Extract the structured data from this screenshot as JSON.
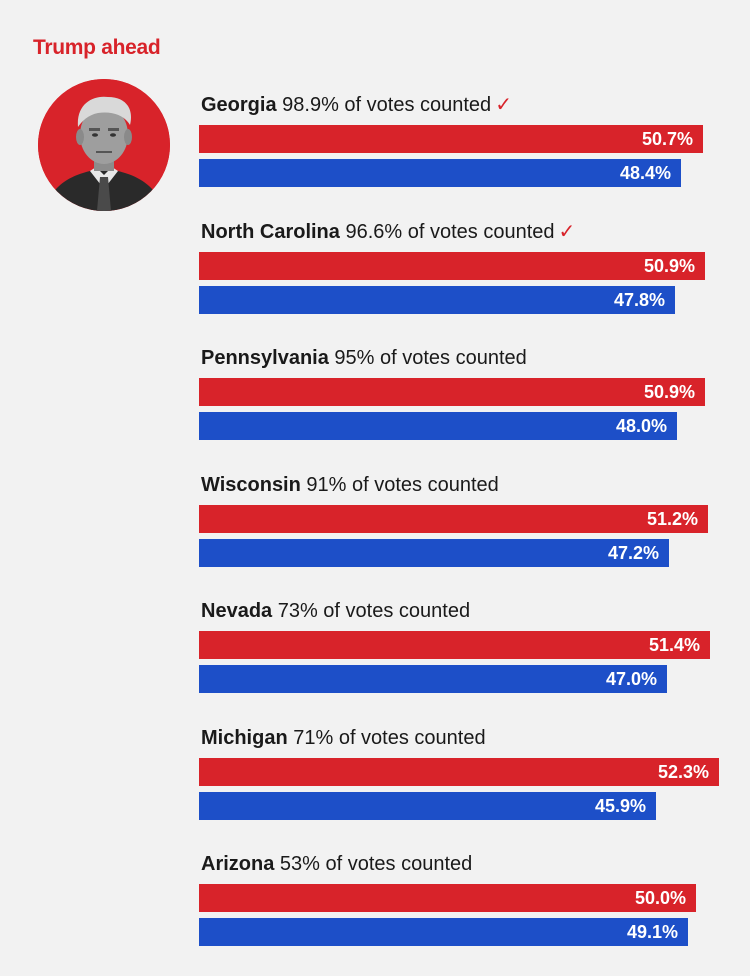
{
  "heading": "Trump ahead",
  "colors": {
    "republican": "#d8232a",
    "democrat": "#1d4fc8",
    "heading": "#d8232a"
  },
  "avatar_icon": "candidate-portrait",
  "check_icon": "checkmark-icon",
  "chart_data": {
    "type": "bar",
    "orientation": "horizontal",
    "categories": [
      "Georgia",
      "North Carolina",
      "Pennsylvania",
      "Wisconsin",
      "Nevada",
      "Michigan",
      "Arizona"
    ],
    "series": [
      {
        "values": [
          50.7,
          50.9,
          50.9,
          51.2,
          51.4,
          52.3,
          50.0
        ]
      },
      {
        "values": [
          48.4,
          47.8,
          48.0,
          47.2,
          47.0,
          45.9,
          49.1
        ]
      }
    ],
    "series_labels": [
      [
        "50.7%",
        "50.9%",
        "50.9%",
        "51.2%",
        "51.4%",
        "52.3%",
        "50.0%"
      ],
      [
        "48.4%",
        "47.8%",
        "48.0%",
        "47.2%",
        "47.0%",
        "45.9%",
        "49.1%"
      ]
    ],
    "counted_text": [
      "98.9% of votes counted",
      "96.6% of votes counted",
      "95% of votes counted",
      "91% of votes counted",
      "73% of votes counted",
      "71% of votes counted",
      "53% of votes counted"
    ],
    "called": [
      true,
      true,
      false,
      false,
      false,
      false,
      false
    ],
    "check_glyph": "✓",
    "xlim": [
      0,
      100
    ],
    "grid": false,
    "legend": "none"
  }
}
